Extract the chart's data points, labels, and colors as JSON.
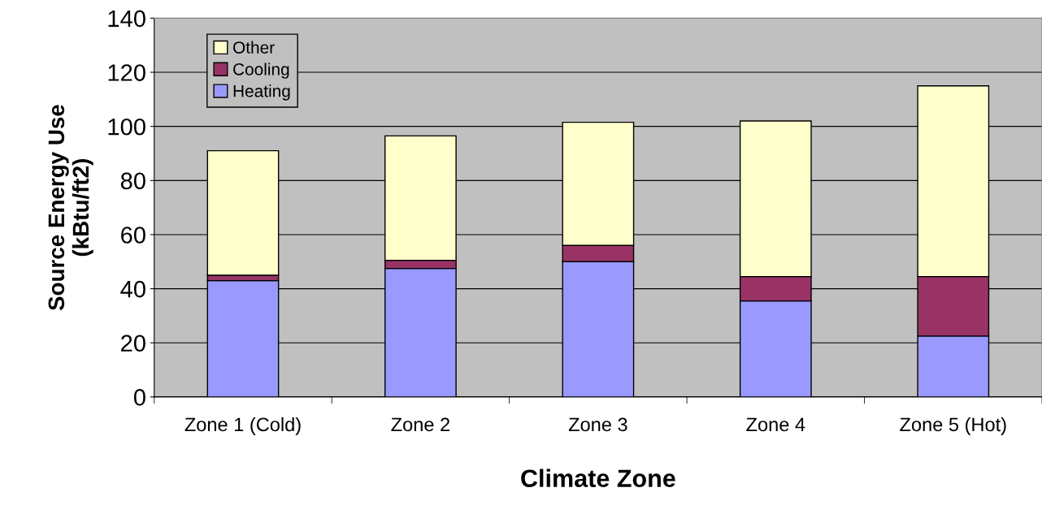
{
  "chart_data": {
    "type": "bar",
    "stacked": true,
    "xlabel": "Climate Zone",
    "ylabel": "Source Energy Use\n(kBtu/ft2)",
    "categories": [
      "Zone 1 (Cold)",
      "Zone 2",
      "Zone 3",
      "Zone 4",
      "Zone 5 (Hot)"
    ],
    "series": [
      {
        "name": "Heating",
        "color": "#9999ff",
        "values": [
          43,
          47.5,
          50,
          35.5,
          22.5
        ]
      },
      {
        "name": "Cooling",
        "color": "#993366",
        "values": [
          2,
          3,
          6,
          9,
          22
        ]
      },
      {
        "name": "Other",
        "color": "#ffffcc",
        "values": [
          46,
          46,
          45.5,
          57.5,
          70.5
        ]
      }
    ],
    "ylim": [
      0,
      140
    ],
    "yticks": [
      0,
      20,
      40,
      60,
      80,
      100,
      120,
      140
    ],
    "grid": "y",
    "legend": "top left"
  }
}
